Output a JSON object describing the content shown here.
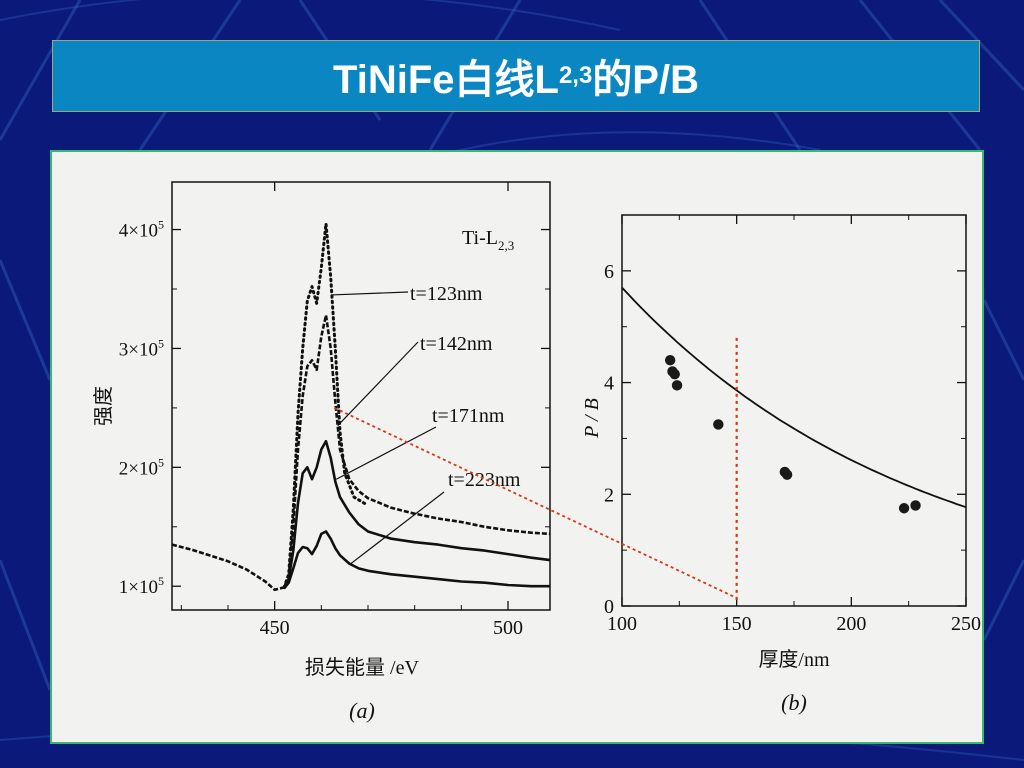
{
  "slide": {
    "title_prefix": "TiNiFe白线L",
    "title_sub": "2,3",
    "title_suffix": "的P/B"
  },
  "colors": {
    "background": "#0b1a7a",
    "title_bar": "#0a86c2",
    "figure_border": "#35b870",
    "annotation": "#d43a10"
  },
  "chart_data": [
    {
      "type": "line",
      "panel_label": "(a)",
      "xlabel": "损失能量 /eV",
      "ylabel": "强度",
      "element_label": "Ti-L",
      "element_label_sub": "2,3",
      "xlim": [
        428,
        509
      ],
      "ylim": [
        80000,
        440000
      ],
      "x_ticks": [
        450,
        500
      ],
      "y_ticks": [
        {
          "value": 100000,
          "label_base": "1×10",
          "label_exp": "5"
        },
        {
          "value": 200000,
          "label_base": "2×10",
          "label_exp": "5"
        },
        {
          "value": 300000,
          "label_base": "3×10",
          "label_exp": "5"
        },
        {
          "value": 400000,
          "label_base": "4×10",
          "label_exp": "5"
        }
      ],
      "series": [
        {
          "name": "t=123nm",
          "style": "dotted",
          "x": [
            452,
            453,
            454,
            455,
            456,
            457,
            458,
            459,
            460,
            461,
            462,
            463,
            464,
            465,
            467,
            470
          ],
          "y": [
            99000,
            110000,
            165000,
            245000,
            300000,
            340000,
            352000,
            338000,
            368000,
            405000,
            360000,
            300000,
            230000,
            195000,
            175000,
            168000
          ]
        },
        {
          "name": "t=142nm",
          "style": "solid-dotted",
          "x": [
            428,
            432,
            436,
            440,
            444,
            448,
            450,
            452,
            453,
            454,
            455,
            456,
            457,
            458,
            459,
            460,
            461,
            462,
            463,
            464,
            466,
            468,
            470,
            475,
            480,
            485,
            490,
            495,
            500,
            505,
            509
          ],
          "y": [
            135000,
            131000,
            126000,
            121000,
            114000,
            104000,
            97000,
            99000,
            108000,
            150000,
            215000,
            260000,
            285000,
            290000,
            282000,
            310000,
            328000,
            300000,
            255000,
            215000,
            190000,
            180000,
            174000,
            166000,
            161000,
            157000,
            154000,
            150000,
            147000,
            145000,
            144000
          ]
        },
        {
          "name": "t=171nm",
          "style": "solid",
          "x": [
            452,
            453,
            454,
            455,
            456,
            457,
            458,
            459,
            460,
            461,
            462,
            463,
            464,
            466,
            468,
            470,
            475,
            480,
            485,
            490,
            495,
            500,
            505,
            509
          ],
          "y": [
            99000,
            106000,
            130000,
            170000,
            195000,
            200000,
            190000,
            200000,
            215000,
            222000,
            208000,
            188000,
            175000,
            162000,
            152000,
            146000,
            140000,
            137000,
            135000,
            132000,
            130000,
            127000,
            124000,
            122000
          ]
        },
        {
          "name": "t=223nm",
          "style": "solid",
          "x": [
            452,
            453,
            454,
            455,
            456,
            457,
            458,
            459,
            460,
            461,
            462,
            463,
            464,
            466,
            468,
            470,
            475,
            480,
            485,
            490,
            495,
            500,
            505,
            509
          ],
          "y": [
            98000,
            103000,
            115000,
            128000,
            133000,
            132000,
            127000,
            134000,
            144000,
            146000,
            140000,
            132000,
            126000,
            119000,
            115000,
            113000,
            110000,
            108000,
            106000,
            104000,
            103000,
            101000,
            100000,
            100000
          ]
        }
      ]
    },
    {
      "type": "scatter",
      "panel_label": "(b)",
      "xlabel": "厚度/nm",
      "ylabel": "P / B",
      "xlim": [
        100,
        250
      ],
      "ylim": [
        0,
        7
      ],
      "x_ticks": [
        100,
        150,
        200,
        250
      ],
      "y_ticks": [
        0,
        2,
        4,
        6
      ],
      "points": [
        {
          "x": 121,
          "y": 4.4
        },
        {
          "x": 122,
          "y": 4.2
        },
        {
          "x": 123,
          "y": 4.15
        },
        {
          "x": 124,
          "y": 3.95
        },
        {
          "x": 142,
          "y": 3.25
        },
        {
          "x": 171,
          "y": 2.4
        },
        {
          "x": 172,
          "y": 2.35
        },
        {
          "x": 223,
          "y": 1.75
        },
        {
          "x": 228,
          "y": 1.8
        }
      ],
      "fit_curve": {
        "a": 5.7,
        "b": -0.0078,
        "x0": 100
      },
      "annotation_line_x": 150
    }
  ]
}
